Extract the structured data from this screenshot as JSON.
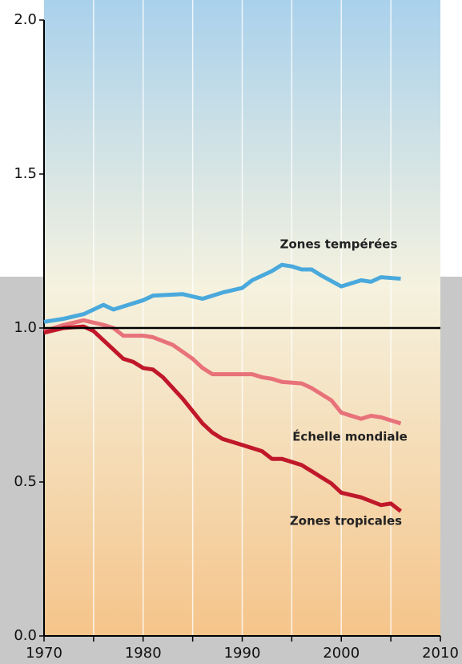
{
  "chart_data": {
    "type": "line",
    "xlim": [
      1970,
      2010
    ],
    "xticks": [
      1970,
      1980,
      1990,
      2000,
      2010
    ],
    "ylim": [
      0,
      2
    ],
    "yticks": [
      {
        "value": 0,
        "label": "0.0"
      },
      {
        "value": 0.5,
        "label": "0.5"
      },
      {
        "value": 1,
        "label": "1.0"
      },
      {
        "value": 1.5,
        "label": "1.5"
      },
      {
        "value": 2,
        "label": "2.0"
      }
    ],
    "hline": 1,
    "grid": true,
    "series": [
      {
        "name": "Zones tempérées",
        "color": "#4aa9dc",
        "x": [
          1970,
          1972,
          1974,
          1976,
          1977,
          1978,
          1980,
          1981,
          1984,
          1986,
          1988,
          1990,
          1991,
          1993,
          1994,
          1995,
          1996,
          1997,
          1998,
          2000,
          2001,
          2002,
          2003,
          2004,
          2006
        ],
        "values": [
          1.02,
          1.03,
          1.045,
          1.075,
          1.06,
          1.07,
          1.09,
          1.105,
          1.11,
          1.095,
          1.115,
          1.13,
          1.155,
          1.185,
          1.205,
          1.2,
          1.19,
          1.19,
          1.17,
          1.135,
          1.145,
          1.155,
          1.15,
          1.165,
          1.16
        ]
      },
      {
        "name": "Échelle mondiale",
        "color": "#e8727a",
        "x": [
          1970,
          1972,
          1974,
          1976,
          1977,
          1978,
          1980,
          1981,
          1983,
          1985,
          1986,
          1987,
          1990,
          1991,
          1992,
          1993,
          1994,
          1996,
          1997,
          1999,
          2000,
          2001,
          2002,
          2003,
          2004,
          2006
        ],
        "values": [
          0.99,
          1.01,
          1.025,
          1.01,
          1.0,
          0.975,
          0.975,
          0.97,
          0.945,
          0.9,
          0.87,
          0.85,
          0.85,
          0.85,
          0.84,
          0.835,
          0.825,
          0.82,
          0.805,
          0.765,
          0.725,
          0.715,
          0.705,
          0.715,
          0.71,
          0.69
        ]
      },
      {
        "name": "Zones tropicales",
        "color": "#c0182a",
        "x": [
          1970,
          1972,
          1974,
          1975,
          1976,
          1977,
          1978,
          1979,
          1980,
          1981,
          1982,
          1984,
          1985,
          1986,
          1987,
          1988,
          1990,
          1991,
          1992,
          1993,
          1994,
          1996,
          1997,
          1998,
          1999,
          2000,
          2002,
          2004,
          2005,
          2006
        ],
        "values": [
          0.985,
          1.0,
          1.005,
          0.99,
          0.96,
          0.93,
          0.9,
          0.89,
          0.87,
          0.865,
          0.84,
          0.77,
          0.73,
          0.69,
          0.66,
          0.64,
          0.62,
          0.61,
          0.6,
          0.575,
          0.575,
          0.555,
          0.535,
          0.515,
          0.495,
          0.465,
          0.45,
          0.425,
          0.43,
          0.405
        ]
      }
    ]
  }
}
